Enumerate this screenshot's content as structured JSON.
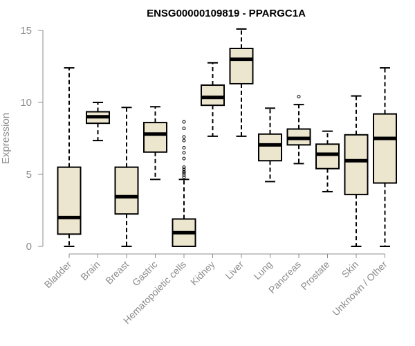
{
  "chart_data": {
    "type": "boxplot",
    "title": "ENSG00000109819 - PPARGC1A",
    "xlabel": "",
    "ylabel": "Expression",
    "ylim": [
      0,
      15
    ],
    "yticks": [
      0,
      5,
      10,
      15
    ],
    "categories": [
      "Bladder",
      "Brain",
      "Breast",
      "Gastric",
      "Hematopoietic cells",
      "Kidney",
      "Liver",
      "Lung",
      "Pancreas",
      "Prostate",
      "Skin",
      "Unknown / Other"
    ],
    "boxes": [
      {
        "min": 0.0,
        "q1": 0.85,
        "median": 2.0,
        "q3": 5.5,
        "max": 12.4,
        "outliers": []
      },
      {
        "min": 7.35,
        "q1": 8.55,
        "median": 9.0,
        "q3": 9.35,
        "max": 10.0,
        "outliers": []
      },
      {
        "min": 0.0,
        "q1": 2.25,
        "median": 3.45,
        "q3": 5.5,
        "max": 9.65,
        "outliers": []
      },
      {
        "min": 4.65,
        "q1": 6.55,
        "median": 7.8,
        "q3": 8.6,
        "max": 9.7,
        "outliers": []
      },
      {
        "min": 0.0,
        "q1": 0.0,
        "median": 0.95,
        "q3": 1.9,
        "max": 4.65,
        "outliers": [
          4.8,
          4.95,
          5.1,
          5.2,
          5.35,
          5.5,
          6.1,
          6.5,
          6.85,
          7.35,
          7.6,
          8.2,
          8.65
        ]
      },
      {
        "min": 7.65,
        "q1": 9.8,
        "median": 10.35,
        "q3": 11.2,
        "max": 12.75,
        "outliers": []
      },
      {
        "min": 7.65,
        "q1": 11.3,
        "median": 13.0,
        "q3": 13.75,
        "max": 15.1,
        "outliers": []
      },
      {
        "min": 4.5,
        "q1": 5.95,
        "median": 7.05,
        "q3": 7.8,
        "max": 9.6,
        "outliers": []
      },
      {
        "min": 5.75,
        "q1": 7.05,
        "median": 7.5,
        "q3": 8.15,
        "max": 9.85,
        "outliers": [
          10.4
        ]
      },
      {
        "min": 3.8,
        "q1": 5.4,
        "median": 6.4,
        "q3": 7.1,
        "max": 8.0,
        "outliers": []
      },
      {
        "min": 0.0,
        "q1": 3.6,
        "median": 5.95,
        "q3": 7.75,
        "max": 10.45,
        "outliers": []
      },
      {
        "min": 0.0,
        "q1": 4.4,
        "median": 7.5,
        "q3": 9.2,
        "max": 12.4,
        "outliers": []
      }
    ],
    "grid": false,
    "legend": "none"
  },
  "colors": {
    "box_fill": "#ede6cf",
    "box_stroke": "#000000",
    "axis": "#8c8c8c",
    "label": "#8c8c8c"
  }
}
